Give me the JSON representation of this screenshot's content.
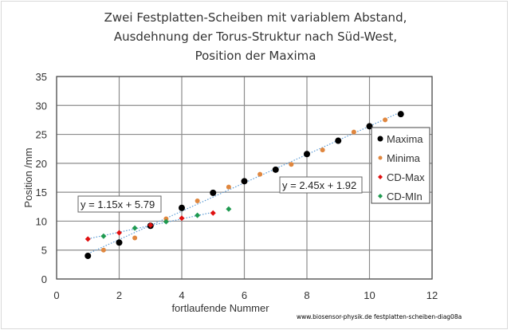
{
  "chart_data": {
    "type": "scatter",
    "title": [
      "Zwei Festplatten-Scheiben mit variablem Abstand,",
      "Ausdehnung der Torus-Struktur nach Süd-West,",
      "Position der Maxima"
    ],
    "xlabel": "fortlaufende Nummer",
    "ylabel": "Position /mm",
    "xlim": [
      0,
      12
    ],
    "ylim": [
      0,
      35
    ],
    "xticks": [
      0,
      2,
      4,
      6,
      8,
      10,
      12
    ],
    "yticks": [
      0,
      5,
      10,
      15,
      20,
      25,
      30,
      35
    ],
    "grid": true,
    "legend_position": "right",
    "series": [
      {
        "name": "Maxima",
        "color": "#000000",
        "marker": "circle",
        "x": [
          1,
          2,
          3,
          4,
          5,
          6,
          7,
          8,
          9,
          10,
          11
        ],
        "y": [
          4.0,
          6.3,
          9.2,
          12.3,
          14.9,
          16.9,
          18.9,
          21.6,
          23.9,
          26.4,
          28.5
        ]
      },
      {
        "name": "Minima",
        "color": "#e0873f",
        "marker": "circle-small",
        "x": [
          1.5,
          2.5,
          3.5,
          4.5,
          5.5,
          6.5,
          7.5,
          8.5,
          9.5,
          10.5
        ],
        "y": [
          5.0,
          7.1,
          10.4,
          13.5,
          15.9,
          18.1,
          19.8,
          22.3,
          25.4,
          27.5
        ]
      },
      {
        "name": "CD-Max",
        "color": "#e01010",
        "marker": "diamond",
        "x": [
          1,
          2,
          3,
          4,
          5
        ],
        "y": [
          6.9,
          8.0,
          9.3,
          10.5,
          11.4
        ]
      },
      {
        "name": "CD-MIn",
        "color": "#1f9a50",
        "marker": "diamond",
        "x": [
          1.5,
          2.5,
          3.5,
          4.5,
          5.5
        ],
        "y": [
          7.4,
          8.8,
          9.9,
          11.0,
          12.1
        ]
      }
    ],
    "trendlines": [
      {
        "label": "y = 2.45x + 1.92",
        "slope": 2.45,
        "intercept": 1.92,
        "x_range": [
          1,
          11
        ],
        "color": "#5b9bd5"
      },
      {
        "label": "y = 1.15x + 5.79",
        "slope": 1.15,
        "intercept": 5.79,
        "x_range": [
          1,
          5
        ],
        "color": "#5b9bd5"
      }
    ]
  },
  "footer": "www.biosensor-physik.de  festplatten-scheiben-diag08a"
}
